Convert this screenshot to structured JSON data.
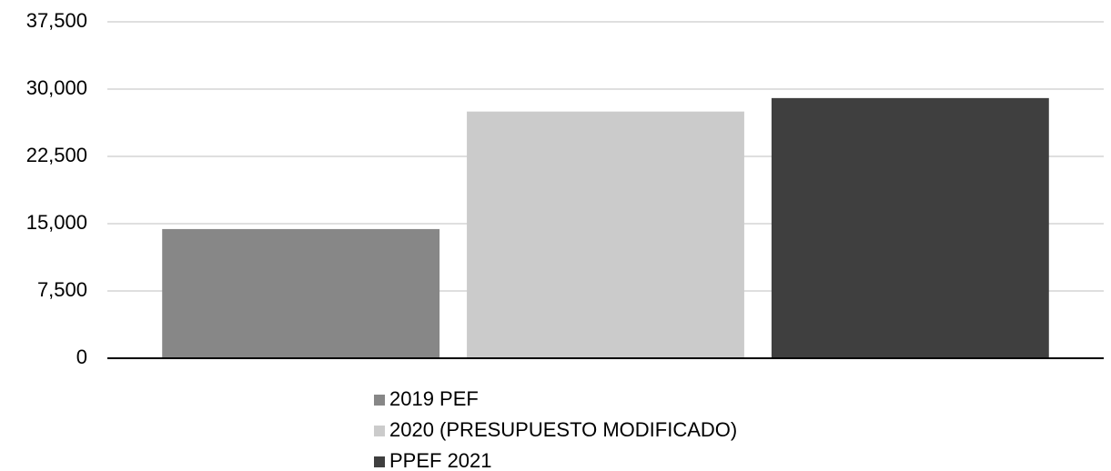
{
  "chart_data": {
    "type": "bar",
    "categories": [
      null
    ],
    "series": [
      {
        "name": "2019 PEF",
        "color": "#878787",
        "values": [
          14400
        ]
      },
      {
        "name": "2020 (PRESUPUESTO MODIFICADO)",
        "color": "#cbcbcb",
        "values": [
          27500
        ]
      },
      {
        "name": "PPEF 2021",
        "color": "#3f3f3f",
        "values": [
          29000
        ]
      }
    ],
    "ylim": [
      0,
      37500
    ],
    "yticks": [
      0,
      {
        "value": 7500,
        "label": "7,500"
      },
      {
        "value": 15000,
        "label": "15,000"
      },
      {
        "value": 22500,
        "label": "22,500"
      },
      {
        "value": 30000,
        "label": "30,000"
      },
      {
        "value": 37500,
        "label": "37,500"
      }
    ],
    "grid": true,
    "legend": "bottom"
  }
}
